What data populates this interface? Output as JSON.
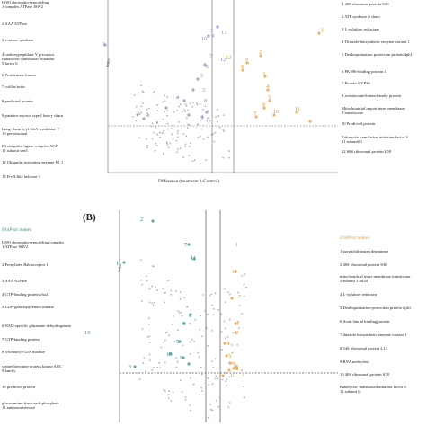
{
  "panelA": {
    "y_axis_label": "-log₁₀",
    "x_axis_label": "Difference (treatment 1-Control)",
    "left_list": [
      "ISWI chromatin-remodeling\n1 complex ATPase ISW2",
      "2 AAA ATPase",
      "3 v-zanne synthase",
      "4 carboxypeptidase Y precursor\n  Eukaryotic translation initiation\n5 factor 6",
      "6 Protokinase kinase",
      "7 cofilin/actin",
      "8 predicted protein",
      "9 putative myosin type I heavy chain",
      "Long-chain acyl-CoA synthetase 7\n10 peroxisomal",
      "E3 ubiquitin-ligase complex ACF\n11 subunit sen3",
      "12 Ubiquitin-activating enzyme E1 1",
      "13 FrvB-like helicase 1"
    ],
    "right_list": [
      "1 40S ribosomal protein S30",
      "2 ATP synthase d chain",
      "3 L-xylulose reductase",
      "4 Thiazole biosynthetic enzyme variant 1",
      "5 Deubiquitination protection protein dph1",
      "6 PKS96-binding protein 4",
      "7 Protein GVP36",
      "8 acetolactate/ketone family protein",
      "Mitochondrial import inner membrane\n9 translocase",
      "10 Predicted protein",
      "Eukaryotic translation initiation factor 3\n11 subunit G",
      "12 60S ribosomal protein L59"
    ],
    "plot_labels": [
      "1",
      "2",
      "3",
      "4",
      "5",
      "6",
      "7",
      "8",
      "9",
      "10",
      "11",
      "12",
      "13",
      "1",
      "2",
      "3",
      "4",
      "5",
      "6",
      "7",
      "8",
      "9",
      "10",
      "11",
      "12"
    ]
  },
  "panelB": {
    "panel_label": "(B)",
    "y_axis_label": "-log₁₀",
    "left_header": "UniProt names",
    "right_header": "UniProt names",
    "left_list": [
      "ISWI chromatin-remodeling complex\n1 ATPase ISW2",
      "2 Prenylated Rab acceptor 1",
      "3 AAA ATPase",
      "4 GTP-binding protein rho2",
      "5 UDP-galactopyranose mutase",
      "6 NAD-specific glutamate dehydrogenase",
      "7 GTP-binding protein",
      "8 3-ketoacyl-CoA thiolase",
      "serine/threonine protein kinase AGC\n9 family",
      "10 predicted protein",
      "glucosamine-fructose-6-phosphate\n11 aminotransferase"
    ],
    "right_list": [
      "1 porphobilinogen deaminase",
      "2 40S ribosomal protein S30",
      "mitochondrial inner membrane translocase\n3 subunit TIM44",
      "4 L-xylulose reductase",
      "5 Deubiquitination-protection protein dph1",
      "6 Actin lateral binding protein",
      "7 thiazole biosynthetic enzyme variant 1",
      "8 54S ribosomal protein L12",
      "9 RNA methylase",
      "10 40S ribosomal protein S28",
      "Eukaryotic translation initiation factor 3\n11 subunit G"
    ],
    "plot_labels_teal": [
      "2",
      "1",
      "7",
      "11",
      "6",
      "4",
      "5",
      "8",
      "9",
      "3",
      "10"
    ],
    "plot_labels_orange": [
      "1",
      "11",
      "7",
      "9",
      "2",
      "4",
      "5",
      "6",
      "8",
      "3",
      "10"
    ]
  },
  "colors": {
    "teal": "#2a8d85",
    "orange": "#e69a3c",
    "purple": "#8f86c9",
    "gray": "#9a9a9a"
  }
}
